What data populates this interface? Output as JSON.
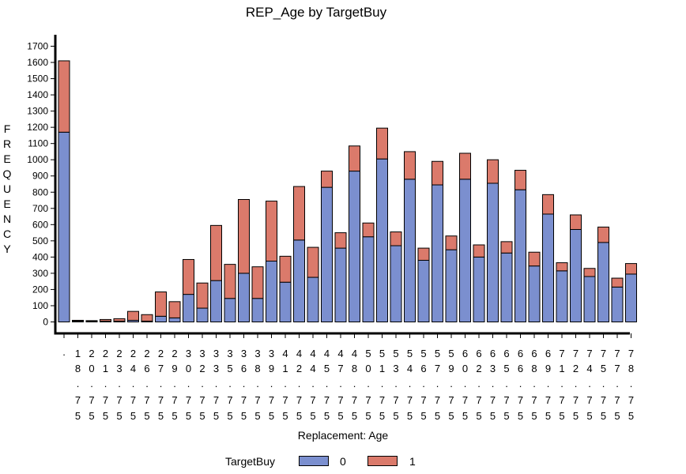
{
  "colors": {
    "series0": "#7b8fcf",
    "series1": "#db7a6b",
    "axis": "#000000"
  },
  "legend": {
    "title": "TargetBuy",
    "items": [
      "0",
      "1"
    ]
  },
  "chart_data": {
    "type": "bar",
    "stacked": true,
    "title": "REP_Age by TargetBuy",
    "ylabel": "FREQUENCY",
    "xlabel": "Replacement: Age",
    "ylim": [
      0,
      1700
    ],
    "yticks": [
      0,
      100,
      200,
      300,
      400,
      500,
      600,
      700,
      800,
      900,
      1000,
      1100,
      1200,
      1300,
      1400,
      1500,
      1600,
      1700
    ],
    "categories": [
      ".",
      "18.75",
      "20.75",
      "21.75",
      "23.75",
      "24.75",
      "26.75",
      "27.75",
      "29.75",
      "30.75",
      "32.75",
      "33.75",
      "35.75",
      "36.75",
      "38.75",
      "39.75",
      "41.75",
      "42.75",
      "44.75",
      "45.75",
      "47.75",
      "48.75",
      "50.75",
      "51.75",
      "53.75",
      "54.75",
      "56.75",
      "57.75",
      "59.75",
      "60.75",
      "62.75",
      "63.75",
      "65.75",
      "66.75",
      "68.75",
      "69.75",
      "71.75",
      "72.75",
      "74.75",
      "75.75",
      "77.75",
      "78.75"
    ],
    "series": [
      {
        "name": "0",
        "values": [
          1170,
          5,
          3,
          5,
          5,
          10,
          5,
          35,
          25,
          170,
          85,
          255,
          145,
          300,
          145,
          375,
          245,
          505,
          275,
          830,
          455,
          930,
          525,
          1005,
          470,
          880,
          380,
          845,
          445,
          880,
          400,
          855,
          425,
          815,
          345,
          665,
          315,
          570,
          280,
          490,
          215,
          295
        ]
      },
      {
        "name": "1",
        "values": [
          440,
          5,
          5,
          10,
          15,
          55,
          40,
          150,
          100,
          215,
          155,
          340,
          210,
          455,
          195,
          370,
          160,
          330,
          185,
          100,
          95,
          155,
          85,
          190,
          85,
          170,
          75,
          145,
          85,
          160,
          75,
          145,
          70,
          120,
          85,
          120,
          50,
          90,
          50,
          95,
          55,
          65
        ]
      }
    ],
    "grid": false,
    "legend_position": "bottom"
  }
}
